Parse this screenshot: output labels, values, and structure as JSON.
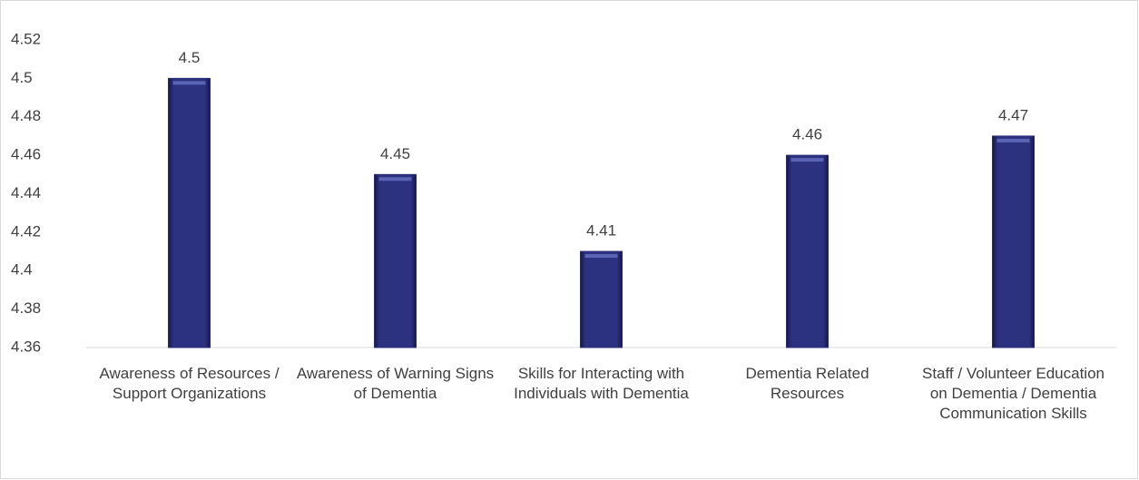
{
  "chart_data": {
    "type": "bar",
    "categories": [
      "Awareness of Resources / Support Organizations",
      "Awareness of Warning Signs of Dementia",
      "Skills for Interacting with Individuals with Dementia",
      "Dementia Related Resources",
      "Staff / Volunteer Education on Dementia / Dementia Communication Skills"
    ],
    "values": [
      4.5,
      4.45,
      4.41,
      4.46,
      4.47
    ],
    "color": "#282c78",
    "ylim": [
      4.36,
      4.52
    ],
    "yticks": [
      4.36,
      4.38,
      4.4,
      4.42,
      4.44,
      4.46,
      4.48,
      4.5,
      4.52
    ],
    "grid": false
  }
}
